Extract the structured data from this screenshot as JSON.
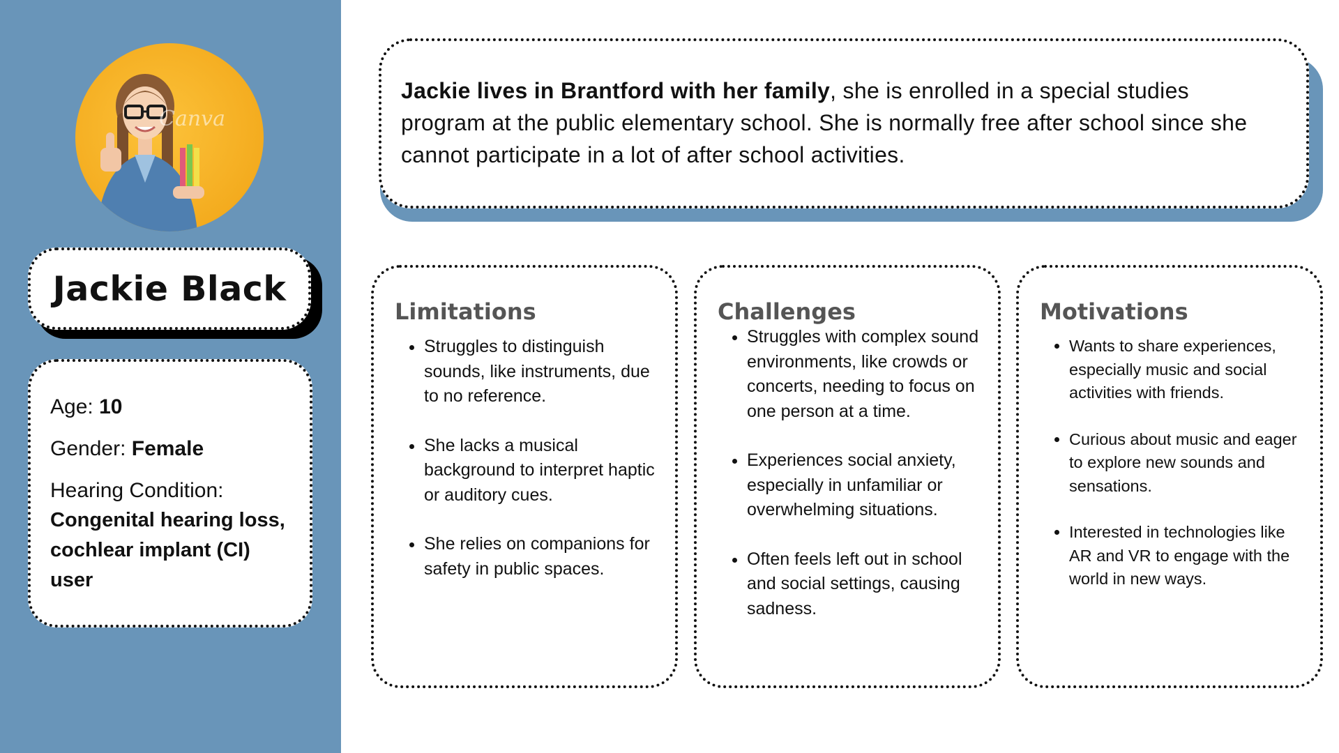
{
  "colors": {
    "sidebar": "#6995B9",
    "accent_shadow": "#6995B9",
    "heading_gray": "#555555",
    "avatar_bg": "#F4AC1F"
  },
  "avatar": {
    "icon": "girl-with-glasses-thumbs-up-photo",
    "watermark": "Canva"
  },
  "profile": {
    "name": "Jackie Black",
    "age_label": "Age:",
    "age_value": "10",
    "gender_label": "Gender:",
    "gender_value": "Female",
    "condition_label": "Hearing Condition:",
    "condition_value": "Congenital hearing loss, cochlear implant (CI) user"
  },
  "bio": {
    "bold": "Jackie lives in Brantford with her family",
    "rest": ", she is enrolled in a special studies program at the public elementary school. She is normally free after school since she cannot participate in a lot of after school activities."
  },
  "limitations": {
    "title": "Limitations",
    "items": [
      "Struggles to distinguish sounds, like instruments, due to no reference.",
      "She lacks a musical background to interpret haptic or auditory cues.",
      "She relies on companions for safety in public spaces."
    ]
  },
  "challenges": {
    "title": "Challenges",
    "items": [
      "Struggles with complex sound environments, like crowds or concerts, needing to focus on one person at a time.",
      "Experiences social anxiety, especially in unfamiliar or overwhelming situations.",
      "Often feels left out in school and social settings, causing sadness."
    ]
  },
  "motivations": {
    "title": "Motivations",
    "items": [
      "Wants to share experiences, especially music and social activities with friends.",
      "Curious about music and eager to explore new sounds and sensations.",
      "Interested in technologies like AR and VR to engage with the world in new ways."
    ]
  }
}
